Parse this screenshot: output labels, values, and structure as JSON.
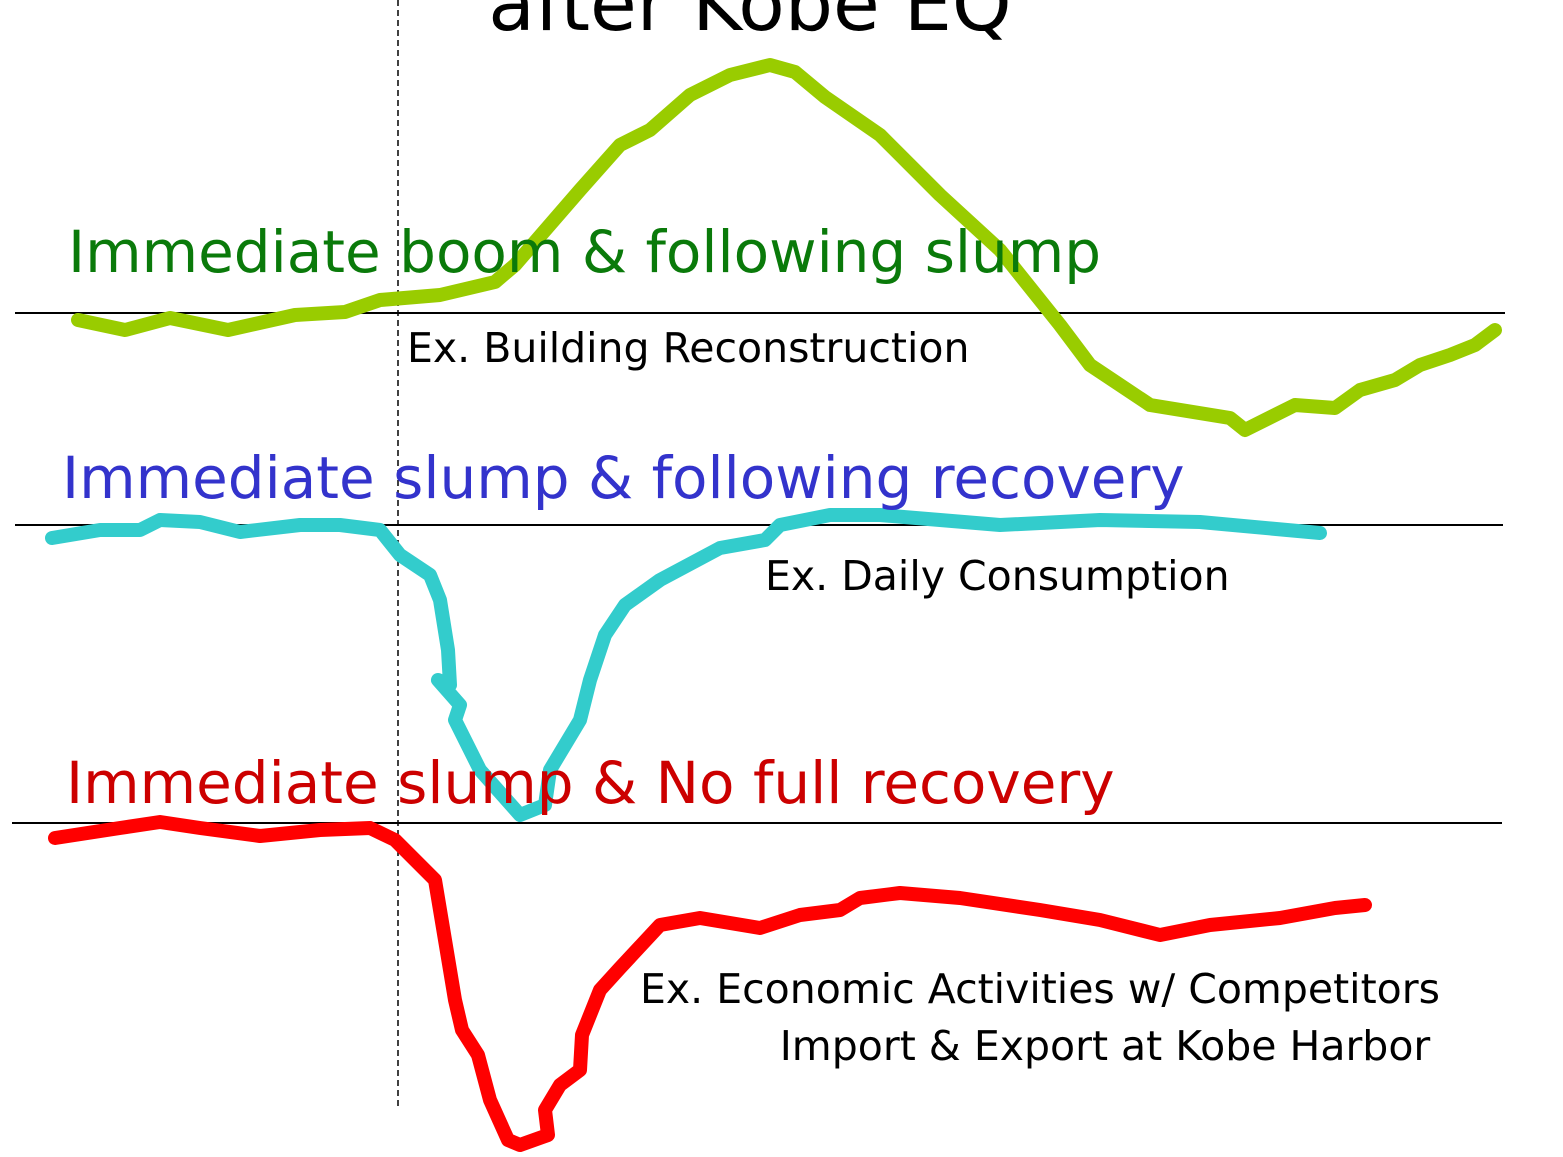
{
  "title": "after Kobe EQ",
  "panels": [
    {
      "heading": "Immediate boom & following slump",
      "examples": [
        "Ex. Building Reconstruction"
      ]
    },
    {
      "heading": "Immediate slump & following recovery",
      "examples": [
        "Ex. Daily Consumption"
      ]
    },
    {
      "heading": "Immediate slump & No full recovery",
      "examples": [
        "Ex. Economic Activities w/ Competitors",
        "Import & Export at Kobe Harbor"
      ]
    }
  ]
}
